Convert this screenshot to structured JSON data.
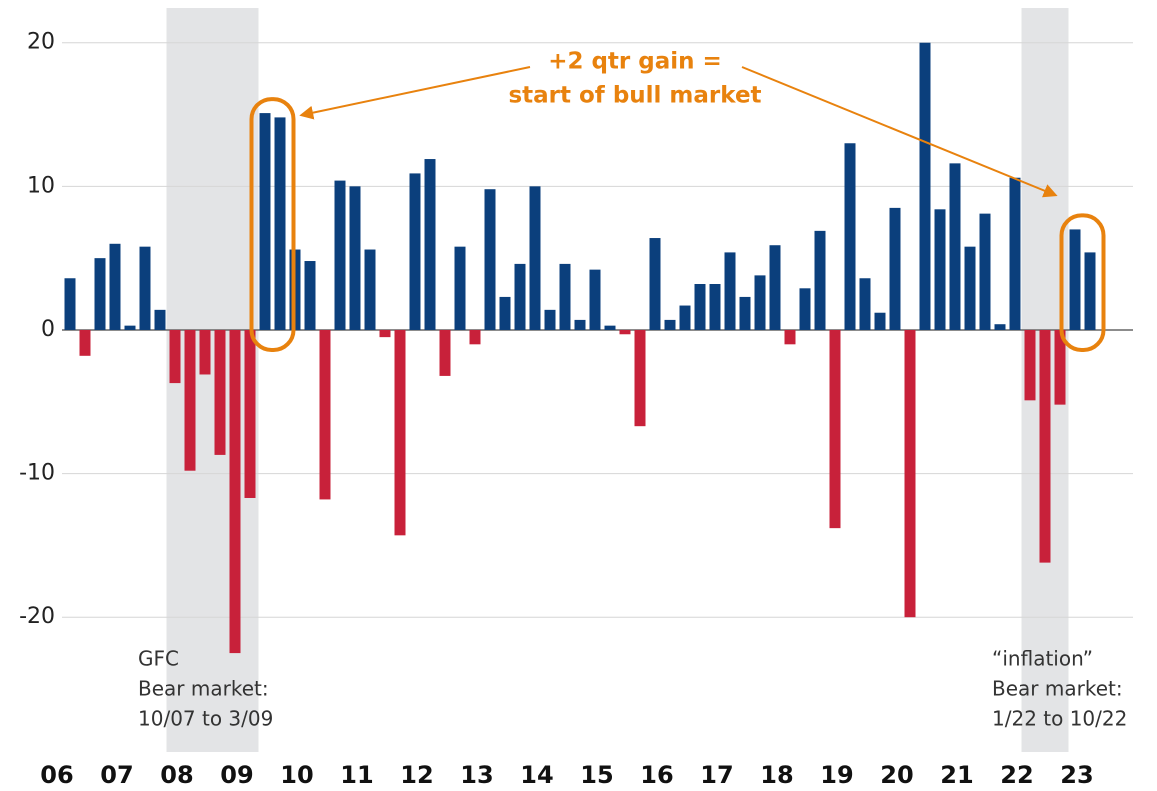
{
  "chart_data": {
    "type": "bar",
    "annotation": [
      "+2 qtr gain =",
      "start of bull market"
    ],
    "categories": [
      "06",
      null,
      null,
      null,
      "07",
      null,
      null,
      null,
      "08",
      null,
      null,
      null,
      "09",
      null,
      null,
      null,
      "10",
      null,
      null,
      null,
      "11",
      null,
      null,
      null,
      "12",
      null,
      null,
      null,
      "13",
      null,
      null,
      null,
      "14",
      null,
      null,
      null,
      "15",
      null,
      null,
      null,
      "16",
      null,
      null,
      null,
      "17",
      null,
      null,
      null,
      "18",
      null,
      null,
      null,
      "19",
      null,
      null,
      null,
      "20",
      null,
      null,
      null,
      "21",
      null,
      null,
      null,
      "22",
      null,
      null,
      null,
      "23"
    ],
    "values": [
      3.6,
      -1.8,
      5.0,
      6.0,
      0.3,
      5.8,
      1.4,
      -3.7,
      -9.8,
      -3.1,
      -8.7,
      -22.5,
      -11.7,
      15.1,
      14.8,
      5.6,
      4.8,
      -11.8,
      10.4,
      10.0,
      5.6,
      -0.5,
      -14.3,
      10.9,
      11.9,
      -3.2,
      5.8,
      -1.0,
      9.8,
      2.3,
      4.6,
      10.0,
      1.4,
      4.6,
      0.7,
      4.2,
      0.3,
      -0.3,
      -6.7,
      6.4,
      0.7,
      1.7,
      3.2,
      3.2,
      5.4,
      2.3,
      3.8,
      5.9,
      -1.0,
      2.9,
      6.9,
      -13.8,
      13.0,
      3.6,
      1.2,
      8.5,
      -20.0,
      20.0,
      8.4,
      11.6,
      5.8,
      8.1,
      0.4,
      10.6,
      -4.9,
      -16.2,
      -5.2,
      7.0,
      5.4
    ],
    "positive_color": "#0b3f7c",
    "negative_color": "#c8213a",
    "ylim": [
      -25,
      22
    ],
    "yticks": [
      20,
      10,
      0,
      -10,
      -20
    ],
    "grid": true,
    "shaded": [
      {
        "from": 7,
        "to": 12,
        "label": [
          "GFC",
          "Bear market:",
          "10/07 to 3/09"
        ]
      },
      {
        "from": 64,
        "to": 66,
        "label": [
          "“inflation”",
          "Bear market:",
          "1/22 to 10/22"
        ]
      }
    ],
    "highlighted": [
      [
        13,
        14
      ],
      [
        67,
        68
      ]
    ]
  }
}
